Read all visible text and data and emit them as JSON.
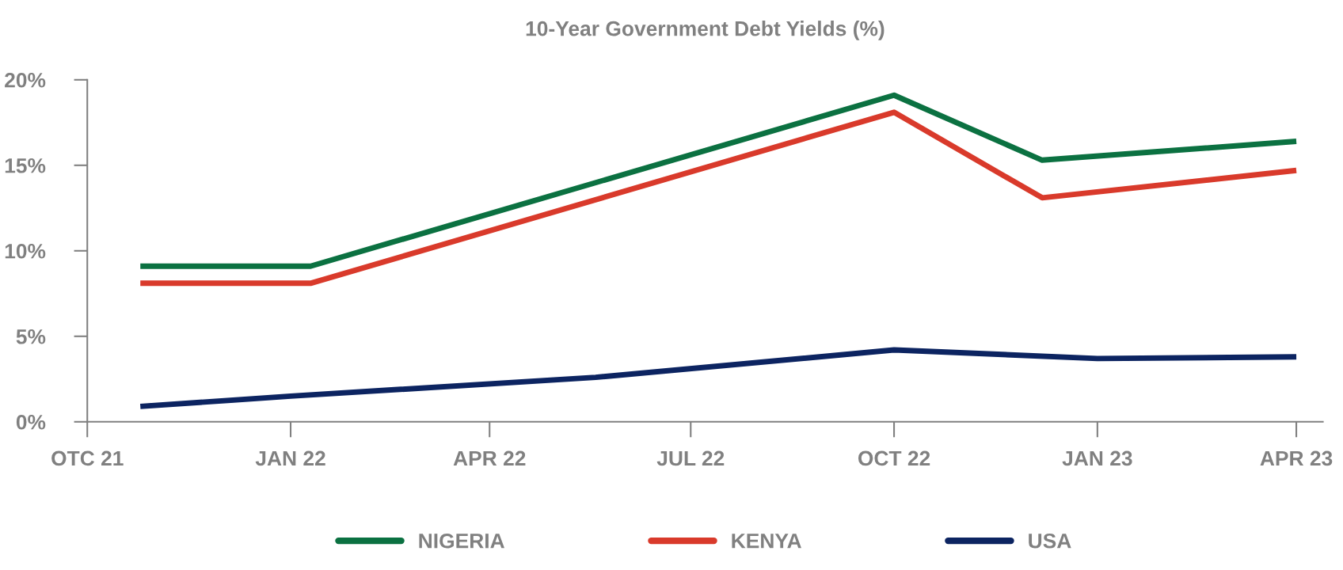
{
  "chart_data": {
    "type": "line",
    "title": "10-Year Government Debt Yields (%)",
    "series": [
      {
        "name": "NIGERIA",
        "color": "#0b7141",
        "x": [
          "2021-10-25",
          "2022-01-10",
          "2022-10-01",
          "2022-12-07",
          "2023-04-01"
        ],
        "values": [
          9.1,
          9.1,
          19.1,
          15.3,
          16.4
        ]
      },
      {
        "name": "KENYA",
        "color": "#d93a2b",
        "x": [
          "2021-10-25",
          "2022-01-10",
          "2022-10-01",
          "2022-12-07",
          "2023-04-01"
        ],
        "values": [
          8.1,
          8.1,
          18.1,
          13.1,
          14.7
        ]
      },
      {
        "name": "USA",
        "color": "#0c2461",
        "x": [
          "2021-10-25",
          "2022-01-01",
          "2022-05-19",
          "2022-10-01",
          "2023-01-01",
          "2023-04-01"
        ],
        "values": [
          0.9,
          1.5,
          2.6,
          4.2,
          3.7,
          3.8
        ]
      }
    ],
    "xlim": [
      "2021-10-01",
      "2023-04-13"
    ],
    "xticks": [
      {
        "value": "2021-10-01",
        "label": "OTC 21"
      },
      {
        "value": "2022-01-01",
        "label": "JAN 22"
      },
      {
        "value": "2022-04-01",
        "label": "APR 22"
      },
      {
        "value": "2022-07-01",
        "label": "JUL 22"
      },
      {
        "value": "2022-10-01",
        "label": "OCT 22"
      },
      {
        "value": "2023-01-01",
        "label": "JAN 23"
      },
      {
        "value": "2023-04-01",
        "label": "APR 23"
      }
    ],
    "ylim": [
      0,
      20
    ],
    "yticks": [
      {
        "value": 0,
        "label": "0%"
      },
      {
        "value": 5,
        "label": "5%"
      },
      {
        "value": 10,
        "label": "10%"
      },
      {
        "value": 15,
        "label": "15%"
      },
      {
        "value": 20,
        "label": "20%"
      }
    ],
    "grid": false,
    "legend": "bottom",
    "marker": "none",
    "line_style": "solid"
  }
}
